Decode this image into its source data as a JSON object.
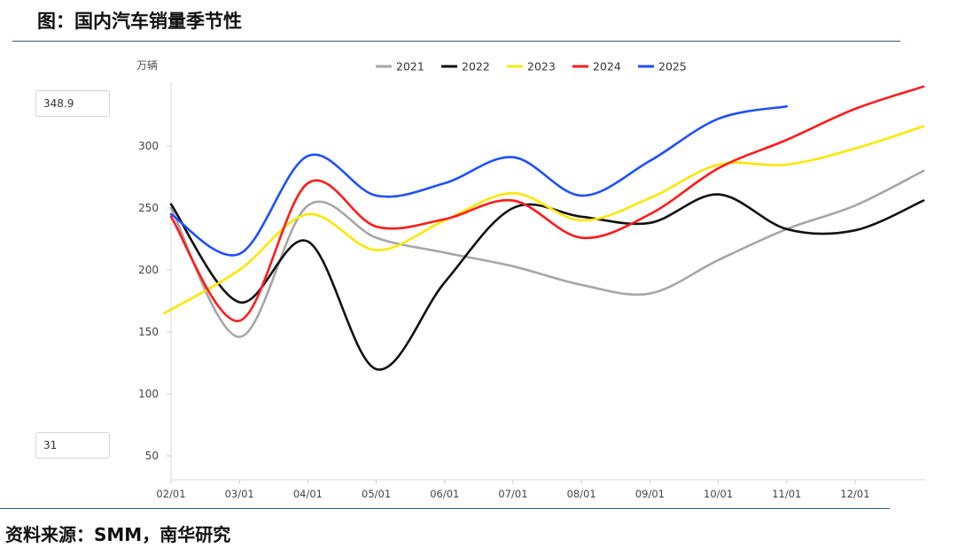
{
  "header": {
    "title": "图：国内汽车销量季节性"
  },
  "footer": {
    "source": "资料来源：SMM，南华研究"
  },
  "range_inputs": {
    "max": "348.9",
    "min": "31"
  },
  "chart_data": {
    "type": "line",
    "title": "",
    "ylabel": "万辆",
    "xlabel": "",
    "ylim": [
      31,
      348.9
    ],
    "y_ticks": [
      50,
      100,
      150,
      200,
      250,
      300
    ],
    "x_ticks": [
      "02/01",
      "03/01",
      "04/01",
      "05/01",
      "06/01",
      "07/01",
      "08/01",
      "09/01",
      "10/01",
      "11/01",
      "12/01"
    ],
    "legend_position": "top",
    "grid": false,
    "series": [
      {
        "name": "2021",
        "color": "#a6a6a6",
        "points": [
          [
            0,
            250
          ],
          [
            1,
            146
          ],
          [
            2,
            252
          ],
          [
            3,
            226
          ],
          [
            4,
            214
          ],
          [
            5,
            203
          ],
          [
            6,
            188
          ],
          [
            7,
            181
          ],
          [
            8,
            208
          ],
          [
            9,
            233
          ],
          [
            10,
            252
          ],
          [
            11,
            280
          ]
        ]
      },
      {
        "name": "2022",
        "color": "#111111",
        "points": [
          [
            0,
            253
          ],
          [
            1,
            174
          ],
          [
            2,
            223
          ],
          [
            3,
            120
          ],
          [
            4,
            190
          ],
          [
            5,
            250
          ],
          [
            6,
            243
          ],
          [
            7,
            238
          ],
          [
            8,
            261
          ],
          [
            9,
            233
          ],
          [
            10,
            232
          ],
          [
            11,
            256
          ]
        ]
      },
      {
        "name": "2023",
        "color": "#ffe600",
        "points": [
          [
            -0.1,
            165
          ],
          [
            1,
            200
          ],
          [
            2,
            245
          ],
          [
            3,
            216
          ],
          [
            4,
            240
          ],
          [
            5,
            262
          ],
          [
            6,
            240
          ],
          [
            7,
            258
          ],
          [
            8,
            285
          ],
          [
            9,
            285
          ],
          [
            10,
            298
          ],
          [
            11,
            316
          ]
        ]
      },
      {
        "name": "2024",
        "color": "#ff1a1a",
        "points": [
          [
            0,
            243
          ],
          [
            1,
            159
          ],
          [
            2,
            270
          ],
          [
            3,
            235
          ],
          [
            4,
            241
          ],
          [
            5,
            256
          ],
          [
            6,
            226
          ],
          [
            7,
            245
          ],
          [
            8,
            282
          ],
          [
            9,
            305
          ],
          [
            10,
            330
          ],
          [
            11,
            348
          ]
        ]
      },
      {
        "name": "2025",
        "color": "#1f4fff",
        "points": [
          [
            0,
            245
          ],
          [
            1,
            213
          ],
          [
            2,
            292
          ],
          [
            3,
            260
          ],
          [
            4,
            270
          ],
          [
            5,
            291
          ],
          [
            6,
            260
          ],
          [
            7,
            288
          ],
          [
            8,
            322
          ],
          [
            9,
            332
          ]
        ]
      }
    ]
  }
}
